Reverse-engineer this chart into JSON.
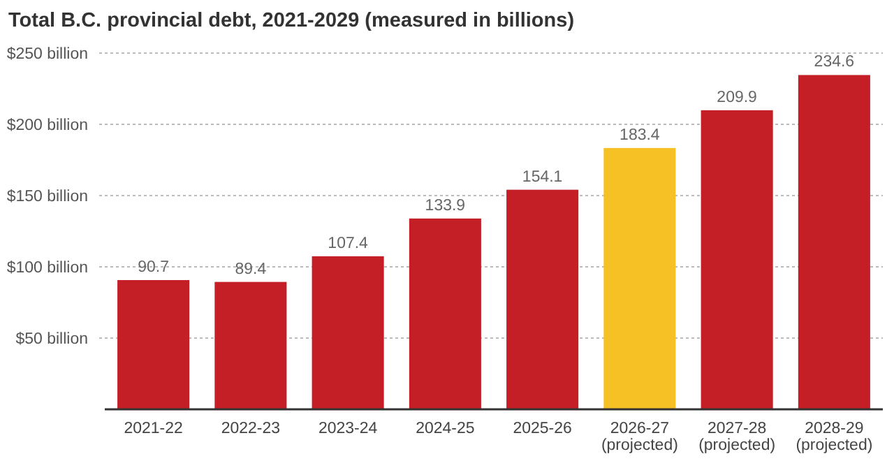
{
  "chart_data": {
    "type": "bar",
    "title": "Total B.C. provincial debt, 2021-2029 (measured in billions)",
    "categories": [
      "2021-22",
      "2022-23",
      "2023-24",
      "2024-25",
      "2025-26",
      "2026-27\n(projected)",
      "2027-28\n(projected)",
      "2028-29\n(projected)"
    ],
    "values": [
      90.7,
      89.4,
      107.4,
      133.9,
      154.1,
      183.4,
      209.9,
      234.6
    ],
    "colors": [
      "#c41f26",
      "#c41f26",
      "#c41f26",
      "#c41f26",
      "#c41f26",
      "#f6c124",
      "#c41f26",
      "#c41f26"
    ],
    "ylim": [
      0,
      250
    ],
    "yticks": [
      {
        "value": 0,
        "label": null
      },
      {
        "value": 50,
        "label": "$50 billion"
      },
      {
        "value": 100,
        "label": "$100 billion"
      },
      {
        "value": 150,
        "label": "$150 billion"
      },
      {
        "value": 200,
        "label": "$200 billion"
      },
      {
        "value": 250,
        "label": "$250 billion"
      }
    ],
    "grid": "y",
    "data_labels": true
  }
}
